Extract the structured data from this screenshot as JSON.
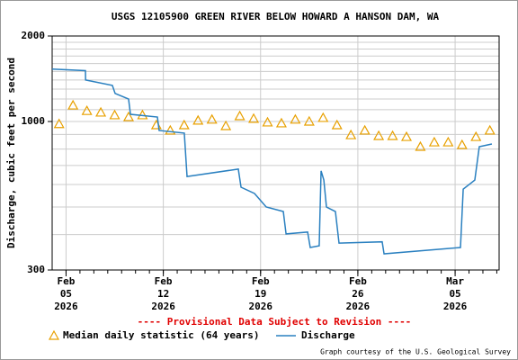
{
  "chart_data": {
    "type": "line",
    "title": "USGS 12105900 GREEN RIVER BELOW HOWARD A HANSON DAM, WA",
    "y_label": "Discharge, cubic feet per second",
    "annotation": "---- Provisional Data Subject to Revision ----",
    "credit": "Graph courtesy of the U.S. Geological Survey",
    "log_y": true,
    "ylim": [
      300,
      2000
    ],
    "yticks": [
      300,
      1000,
      2000
    ],
    "ygrid": [
      300,
      400,
      500,
      600,
      700,
      800,
      900,
      1000,
      1100,
      1200,
      1300,
      1400,
      1500,
      1600,
      1700,
      1800,
      1900,
      2000
    ],
    "xlim": [
      "2026-02-04T00:00",
      "2026-03-08T04:00"
    ],
    "xticks": [
      {
        "value": "2026-02-05T00:00",
        "label": "Feb\n05\n2026"
      },
      {
        "value": "2026-02-12T00:00",
        "label": "Feb\n12\n2026"
      },
      {
        "value": "2026-02-19T00:00",
        "label": "Feb\n19\n2026"
      },
      {
        "value": "2026-02-26T00:00",
        "label": "Feb\n26\n2026"
      },
      {
        "value": "2026-03-05T00:00",
        "label": "Mar\n05\n2026"
      }
    ],
    "grid": true,
    "series": [
      {
        "name": "Median daily statistic (64 years)",
        "marker": "triangle",
        "color": "#e8a000",
        "x": [
          "2026-02-04T12:00",
          "2026-02-05T12:00",
          "2026-02-06T12:00",
          "2026-02-07T12:00",
          "2026-02-08T12:00",
          "2026-02-09T12:00",
          "2026-02-10T12:00",
          "2026-02-11T12:00",
          "2026-02-12T12:00",
          "2026-02-13T12:00",
          "2026-02-14T12:00",
          "2026-02-15T12:00",
          "2026-02-16T12:00",
          "2026-02-17T12:00",
          "2026-02-18T12:00",
          "2026-02-19T12:00",
          "2026-02-20T12:00",
          "2026-02-21T12:00",
          "2026-02-22T12:00",
          "2026-02-23T12:00",
          "2026-02-24T12:00",
          "2026-02-25T12:00",
          "2026-02-26T12:00",
          "2026-02-27T12:00",
          "2026-02-28T12:00",
          "2026-03-01T12:00",
          "2026-03-02T12:00",
          "2026-03-03T12:00",
          "2026-03-04T12:00",
          "2026-03-05T12:00",
          "2026-03-06T12:00",
          "2026-03-07T12:00"
        ],
        "values": [
          980,
          1140,
          1090,
          1076,
          1053,
          1037,
          1053,
          971,
          930,
          971,
          1008,
          1016,
          964,
          1045,
          1023,
          993,
          986,
          1016,
          1000,
          1030,
          971,
          896,
          930,
          890,
          890,
          883,
          815,
          845,
          845,
          827,
          883,
          930
        ]
      },
      {
        "name": "Discharge",
        "marker": "line",
        "color": "#2a80c0",
        "x": [
          "2026-02-04T00:00",
          "2026-02-06T09:30",
          "2026-02-06T09:45",
          "2026-02-08T08:00",
          "2026-02-08T12:45",
          "2026-02-09T12:00",
          "2026-02-09T15:15",
          "2026-02-11T13:45",
          "2026-02-11T16:45",
          "2026-02-13T12:15",
          "2026-02-13T17:00",
          "2026-02-17T09:30",
          "2026-02-17T14:15",
          "2026-02-18T13:30",
          "2026-02-19T09:45",
          "2026-02-20T15:15",
          "2026-02-20T20:00",
          "2026-02-22T09:15",
          "2026-02-22T13:45",
          "2026-02-23T05:15",
          "2026-02-23T08:30",
          "2026-02-23T13:15",
          "2026-02-23T17:45",
          "2026-02-24T09:15",
          "2026-02-24T15:30",
          "2026-02-27T18:00",
          "2026-02-27T21:15",
          "2026-03-05T09:15",
          "2026-03-05T14:00",
          "2026-03-06T10:00",
          "2026-03-06T17:45",
          "2026-03-07T15:30"
        ],
        "values": [
          1530,
          1510,
          1400,
          1340,
          1255,
          1200,
          1060,
          1037,
          930,
          910,
          640,
          680,
          587,
          558,
          500,
          482,
          402,
          408,
          360,
          365,
          670,
          622,
          500,
          482,
          373,
          377,
          342,
          360,
          578,
          622,
          815,
          833
        ]
      }
    ]
  }
}
